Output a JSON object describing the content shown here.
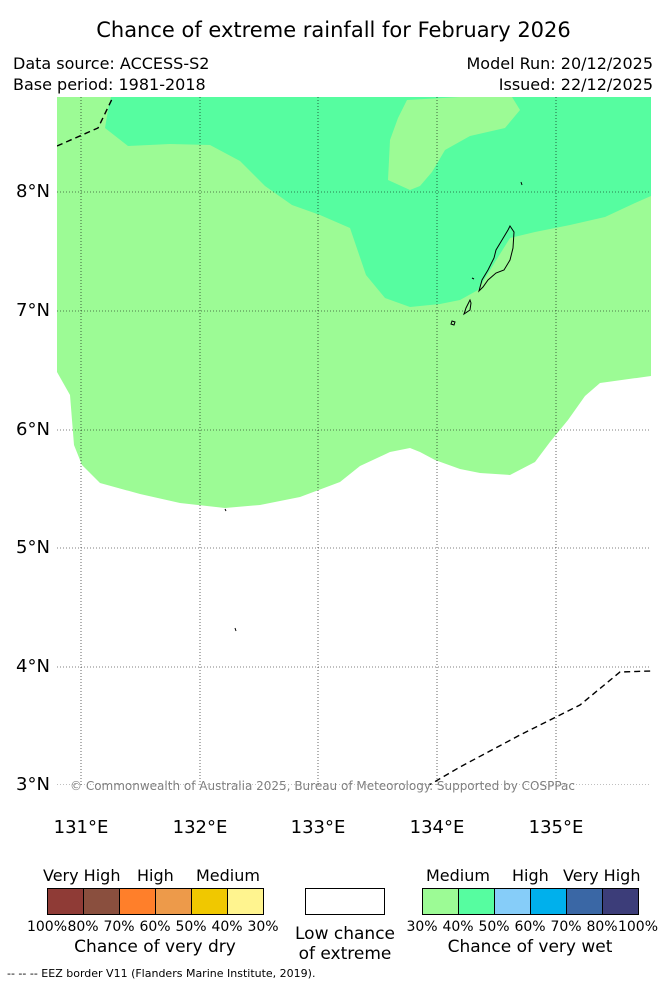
{
  "title": "Chance of extreme rainfall for February 2026",
  "data_source": "Data source: ACCESS-S2",
  "base_period": "Base period: 1981-2018",
  "model_run": "Model Run: 20/12/2025",
  "issued": "Issued: 22/12/2025",
  "copyright": "© Commonwealth of Australia 2025, Bureau of Meteorology. Supported by COSPPac",
  "latitude_labels": [
    "8°N",
    "7°N",
    "6°N",
    "5°N",
    "4°N",
    "3°N"
  ],
  "longitude_labels": [
    "131°E",
    "132°E",
    "133°E",
    "134°E",
    "135°E"
  ],
  "map": {
    "lat_range": [
      2.8,
      8.8
    ],
    "lon_range": [
      130.8,
      135.8
    ],
    "categories_shown": [
      "Medium wet (30%-40%)",
      "Medium wet (40%-50%)",
      "Low chance of extreme"
    ]
  },
  "legend": {
    "dry": {
      "headings": [
        "Very High",
        "High",
        "Medium"
      ],
      "colors": [
        "#8f3b36",
        "#8a4f3e",
        "#ff7f2a",
        "#ed9a4a",
        "#f0c800",
        "#fff48f"
      ],
      "percent_labels": [
        "100%",
        "80%",
        "70%",
        "60%",
        "50%",
        "40%",
        "30%"
      ],
      "caption": "Chance of very dry"
    },
    "low": {
      "caption_line1": "Low chance",
      "caption_line2": "of extreme",
      "color": "#ffffff"
    },
    "wet": {
      "headings": [
        "Medium",
        "High",
        "Very High"
      ],
      "colors": [
        "#9cfb95",
        "#56fda0",
        "#86cdf9",
        "#00b0ec",
        "#3a67a5",
        "#3c3d79"
      ],
      "percent_labels": [
        "30%",
        "40%",
        "50%",
        "60%",
        "70%",
        "80%",
        "100%"
      ],
      "caption": "Chance of very wet"
    }
  },
  "footnote": "--  --  -- EEZ border V11 (Flanders Marine Institute, 2019)."
}
